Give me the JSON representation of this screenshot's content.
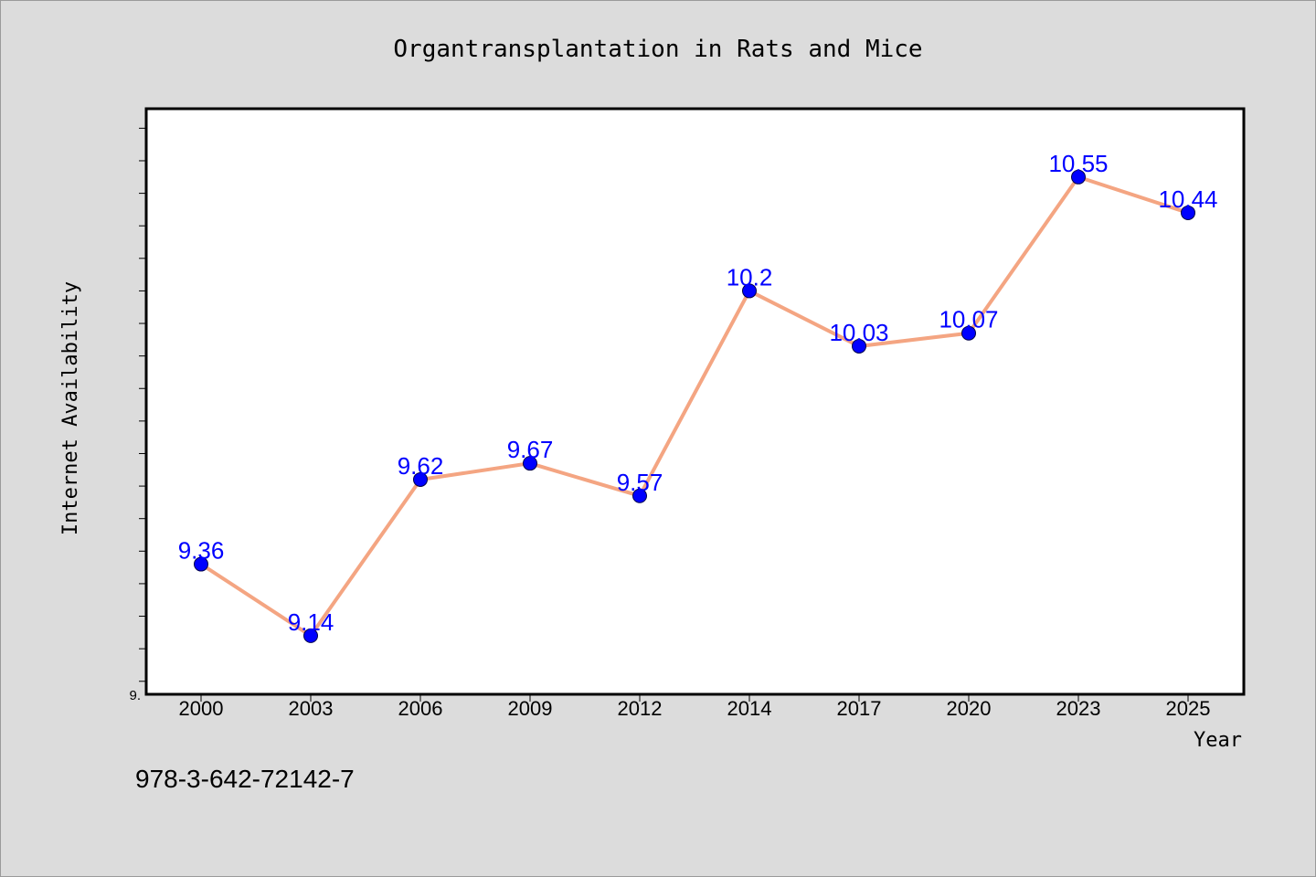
{
  "chart_data": {
    "type": "line",
    "title": "Organtransplantation in Rats and Mice",
    "xlabel": "Year",
    "ylabel": "Internet Availability",
    "categories": [
      "2000",
      "2003",
      "2006",
      "2009",
      "2012",
      "2014",
      "2017",
      "2020",
      "2023",
      "2025"
    ],
    "series": [
      {
        "values": [
          9.36,
          9.14,
          9.62,
          9.67,
          9.57,
          10.2,
          10.03,
          10.07,
          10.55,
          10.44
        ],
        "line_color": "#f4a582",
        "marker_color": "#0000ff"
      }
    ],
    "data_labels": [
      "9.36",
      "9.14",
      "9.62",
      "9.67",
      "9.57",
      "10.2",
      "10.03",
      "10.07",
      "10.55",
      "10.44"
    ],
    "y_min_label": "9.",
    "ylim": [
      8.96,
      10.76
    ],
    "y_minor_tick_step": 0.1,
    "grid": false,
    "legend": "none"
  },
  "footnote": "978-3-642-72142-7"
}
